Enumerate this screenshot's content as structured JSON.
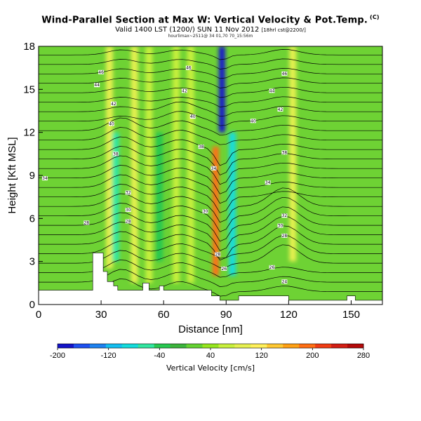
{
  "chart_data": {
    "type": "heatmap",
    "title": "Wind-Parallel Section at Max W: Vertical Velocity & Pot.Temp.",
    "title_marker": "(C)",
    "subtitle": "Valid 1400 LST (1200/)  SUN 11 Nov 2012",
    "subtitle_small": "[18hrl cst@2200/]",
    "subtitle2": "hourlimax~2511@ 34 01,70 70_15:56m",
    "xlabel": "Distance [nm]",
    "ylabel": "Height [Kft MSL]",
    "xlim": [
      0,
      165
    ],
    "ylim": [
      0,
      18
    ],
    "xticks": [
      0,
      30,
      60,
      90,
      120,
      150
    ],
    "yticks": [
      0,
      3,
      6,
      9,
      12,
      15,
      18
    ],
    "grid": false,
    "colorbar": {
      "label": "Vertical Velocity [cm/s]",
      "ticks": [
        -200,
        -120,
        -40,
        40,
        120,
        200,
        280
      ],
      "range": [
        -200,
        280
      ],
      "colors": [
        "#1414c8",
        "#1e50f0",
        "#1e82f0",
        "#14bef0",
        "#14dcdc",
        "#32e6a0",
        "#28c850",
        "#3cb43c",
        "#64d232",
        "#96e61e",
        "#c8f03c",
        "#e6f050",
        "#fff05a",
        "#ffc832",
        "#ffa014",
        "#ff6e14",
        "#f03c14",
        "#d21e14",
        "#b40a0a"
      ]
    },
    "velocity_features": [
      {
        "x": 34,
        "y_top": 18,
        "y_bottom": 2.5,
        "w": 80
      },
      {
        "x": 46,
        "y_top": 18,
        "y_bottom": 1.5,
        "w": 90
      },
      {
        "x": 53,
        "y_top": 18,
        "y_bottom": 1.5,
        "w": 60
      },
      {
        "x": 66,
        "y_top": 18,
        "y_bottom": 1.5,
        "w": 70
      },
      {
        "x": 73,
        "y_top": 18,
        "y_bottom": 1.5,
        "w": 60
      },
      {
        "x": 85,
        "y_top": 11,
        "y_bottom": 2,
        "w": 200
      },
      {
        "x": 88,
        "y_top": 18,
        "y_bottom": 12,
        "w": -200
      },
      {
        "x": 93,
        "y_top": 12,
        "y_bottom": 2,
        "w": -90
      },
      {
        "x": 122,
        "y_top": 18,
        "y_bottom": 3,
        "w": 80
      },
      {
        "x": 37,
        "y_top": 12,
        "y_bottom": 3,
        "w": -60
      },
      {
        "x": 58,
        "y_top": 12,
        "y_bottom": 3,
        "w": -40
      }
    ],
    "terrain": [
      [
        0,
        1
      ],
      [
        26,
        1
      ],
      [
        26,
        3.6
      ],
      [
        31,
        3.6
      ],
      [
        31,
        2.3
      ],
      [
        33,
        2.3
      ],
      [
        33,
        1.6
      ],
      [
        36,
        1.6
      ],
      [
        36,
        1.3
      ],
      [
        38,
        1.3
      ],
      [
        38,
        1
      ],
      [
        50,
        1
      ],
      [
        50,
        1.5
      ],
      [
        53,
        1.5
      ],
      [
        53,
        1
      ],
      [
        58,
        1
      ],
      [
        58,
        1.3
      ],
      [
        60,
        1.3
      ],
      [
        60,
        1
      ],
      [
        83,
        1
      ],
      [
        83,
        0.6
      ],
      [
        87,
        0.6
      ],
      [
        87,
        0.3
      ],
      [
        96,
        0.3
      ],
      [
        96,
        0.6
      ],
      [
        120,
        0.6
      ],
      [
        120,
        0.3
      ],
      [
        148,
        0.3
      ],
      [
        148,
        0.6
      ],
      [
        152,
        0.6
      ],
      [
        152,
        0.3
      ],
      [
        165,
        0.3
      ]
    ],
    "contour_labels": [
      {
        "text": "46",
        "x": 30,
        "y": 16.2
      },
      {
        "text": "44",
        "x": 28,
        "y": 15.3
      },
      {
        "text": "42",
        "x": 36,
        "y": 14.0
      },
      {
        "text": "40",
        "x": 35,
        "y": 12.6
      },
      {
        "text": "38",
        "x": 37,
        "y": 10.5
      },
      {
        "text": "34",
        "x": 3,
        "y": 8.8
      },
      {
        "text": "32",
        "x": 43,
        "y": 7.8
      },
      {
        "text": "30",
        "x": 43,
        "y": 6.6
      },
      {
        "text": "28",
        "x": 23,
        "y": 5.7
      },
      {
        "text": "28",
        "x": 43,
        "y": 5.8
      },
      {
        "text": "46",
        "x": 72,
        "y": 16.5
      },
      {
        "text": "42",
        "x": 70,
        "y": 14.9
      },
      {
        "text": "40",
        "x": 74,
        "y": 13.1
      },
      {
        "text": "38",
        "x": 78,
        "y": 11.0
      },
      {
        "text": "34",
        "x": 84,
        "y": 9.5
      },
      {
        "text": "30",
        "x": 80,
        "y": 6.5
      },
      {
        "text": "28",
        "x": 86,
        "y": 3.5
      },
      {
        "text": "26",
        "x": 89,
        "y": 2.5
      },
      {
        "text": "46",
        "x": 118,
        "y": 16.1
      },
      {
        "text": "44",
        "x": 112,
        "y": 14.9
      },
      {
        "text": "42",
        "x": 116,
        "y": 13.6
      },
      {
        "text": "40",
        "x": 103,
        "y": 12.8
      },
      {
        "text": "38",
        "x": 118,
        "y": 10.6
      },
      {
        "text": "34",
        "x": 110,
        "y": 8.5
      },
      {
        "text": "32",
        "x": 118,
        "y": 6.2
      },
      {
        "text": "30",
        "x": 116,
        "y": 5.5
      },
      {
        "text": "28",
        "x": 118,
        "y": 4.8
      },
      {
        "text": "26",
        "x": 112,
        "y": 2.6
      },
      {
        "text": "24",
        "x": 118,
        "y": 1.6
      }
    ]
  }
}
